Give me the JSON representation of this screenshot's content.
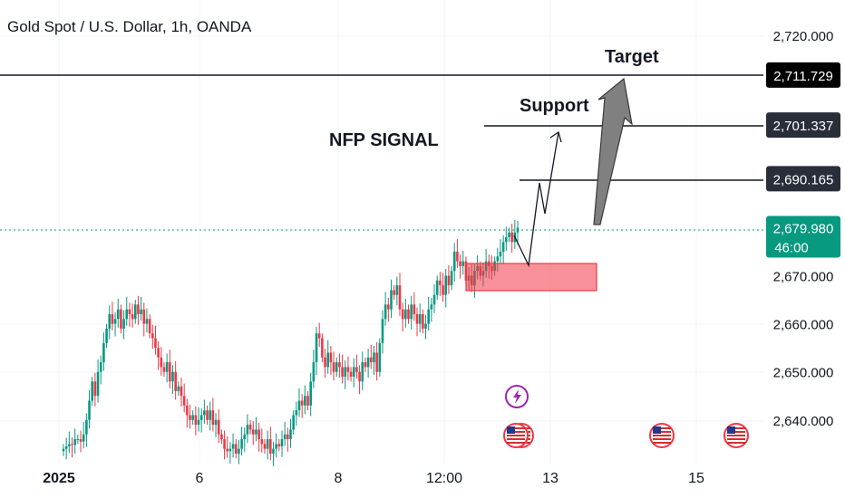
{
  "header": {
    "title": "Gold Spot / U.S. Dollar, 1h, OANDA"
  },
  "chart_data": {
    "type": "candlestick",
    "title": "Gold Spot / U.S. Dollar, 1h, OANDA",
    "y_ticks": [
      "2,720.000",
      "2,670.000",
      "2,660.000",
      "2,650.000",
      "2,640.000"
    ],
    "y_tick_values": [
      2720,
      2670,
      2660,
      2650,
      2640
    ],
    "x_ticks": [
      "2025",
      "6",
      "8",
      "12:00",
      "13",
      "15"
    ],
    "ylim": [
      2633,
      2724
    ],
    "price_labels": [
      {
        "text": "2,711.729",
        "value": 2711.729,
        "style": "black"
      },
      {
        "text": "2,701.337",
        "value": 2701.337,
        "style": "dark"
      },
      {
        "text": "2,690.165",
        "value": 2690.165,
        "style": "dark"
      }
    ],
    "current_price": {
      "text": "2,679.980",
      "countdown": "46:00",
      "value": 2679.98,
      "color": "#089981"
    },
    "annotations": [
      {
        "text": "NFP SIGNAL"
      },
      {
        "text": "Support"
      },
      {
        "text": "Target"
      }
    ],
    "zone": {
      "low": 2667.5,
      "high": 2673.0,
      "color": "#f23645"
    },
    "candles_close": [
      2634,
      2634.5,
      2635,
      2634.8,
      2636,
      2636,
      2635.5,
      2637,
      2640,
      2644,
      2648,
      2645,
      2650,
      2652,
      2656,
      2659,
      2662,
      2660,
      2661,
      2663,
      2659,
      2661,
      2663,
      2662,
      2661,
      2664,
      2662,
      2663,
      2660,
      2661,
      2658,
      2657,
      2655,
      2653,
      2651,
      2650,
      2652,
      2648,
      2650,
      2646,
      2647,
      2645,
      2643,
      2641,
      2640,
      2641,
      2639,
      2640,
      2641,
      2642,
      2640,
      2642,
      2639,
      2640,
      2637,
      2636,
      2634,
      2633.5,
      2634,
      2635,
      2633,
      2634,
      2636,
      2637,
      2639,
      2638,
      2637,
      2638,
      2636,
      2635,
      2634,
      2636,
      2633,
      2634,
      2635,
      2634.5,
      2636,
      2637,
      2636,
      2638,
      2641,
      2642,
      2644,
      2643,
      2645,
      2643,
      2648,
      2652,
      2658,
      2657,
      2653,
      2651,
      2654,
      2652,
      2650,
      2652,
      2651,
      2649,
      2651,
      2650,
      2649,
      2651,
      2650,
      2648,
      2652,
      2651,
      2653,
      2652,
      2654,
      2650,
      2656,
      2661,
      2664,
      2663,
      2667,
      2666,
      2668,
      2663,
      2661,
      2663,
      2661,
      2664,
      2662,
      2660,
      2662,
      2659,
      2660,
      2663,
      2664,
      2666,
      2669,
      2668,
      2666,
      2670,
      2668,
      2671,
      2675,
      2673,
      2672,
      2673,
      2669,
      2670,
      2668,
      2671,
      2672,
      2670,
      2671,
      2673,
      2672,
      2671,
      2673,
      2674,
      2675,
      2677,
      2678,
      2679,
      2677,
      2679,
      2680
    ],
    "events": [
      "lightning-icon",
      "us-flag-icon",
      "us-flag-icon",
      "us-flag-icon"
    ]
  },
  "colors": {
    "up": "#089981",
    "down": "#f23645",
    "current": "#089981",
    "text": "#131722",
    "axis": "#131722"
  }
}
